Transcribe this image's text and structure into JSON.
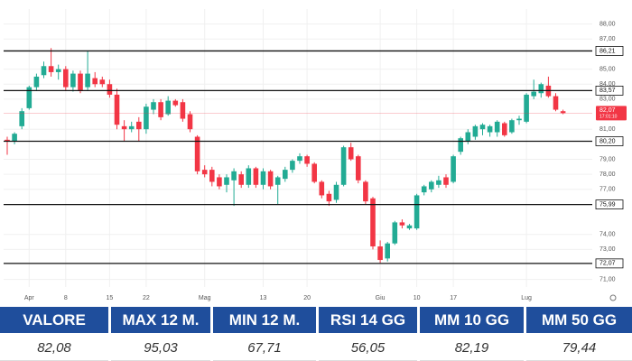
{
  "chart_data": {
    "type": "candlestick",
    "categories": [
      null,
      null,
      null,
      "Apr",
      null,
      null,
      null,
      null,
      "8",
      null,
      null,
      null,
      null,
      null,
      "15",
      null,
      null,
      null,
      null,
      "22",
      null,
      null,
      null,
      null,
      null,
      null,
      null,
      "Mag",
      null,
      null,
      null,
      null,
      null,
      null,
      null,
      "13",
      null,
      null,
      null,
      null,
      null,
      "20",
      null,
      null,
      null,
      null,
      null,
      null,
      null,
      null,
      null,
      "Giu",
      null,
      null,
      null,
      null,
      "10",
      null,
      null,
      null,
      null,
      "17",
      null,
      null,
      null,
      null,
      null,
      null,
      null,
      null,
      null,
      "Lug",
      null,
      null,
      null,
      null,
      null
    ],
    "open": [
      80.3,
      80.2,
      81.2,
      82.4,
      83.8,
      84.6,
      85.2,
      84.8,
      85.0,
      83.8,
      84.7,
      83.8,
      84.4,
      84.3,
      84.0,
      83.3,
      81.2,
      81.0,
      81.5,
      81.0,
      82.3,
      82.8,
      82.0,
      82.9,
      82.8,
      82.0,
      80.5,
      78.3,
      78.3,
      77.8,
      77.3,
      77.6,
      78.0,
      77.3,
      78.4,
      77.3,
      78.2,
      77.3,
      77.7,
      78.3,
      78.9,
      79.2,
      78.7,
      77.5,
      76.7,
      76.3,
      77.3,
      79.8,
      79.2,
      77.5,
      76.4,
      73.2,
      72.4,
      73.4,
      74.8,
      74.4,
      74.4,
      76.8,
      77.0,
      77.3,
      77.8,
      77.5,
      79.5,
      80.2,
      80.5,
      81.0,
      80.8,
      80.8,
      81.4,
      80.8,
      81.6,
      81.5,
      83.2,
      83.4,
      83.9,
      83.2,
      82.2
    ],
    "high": [
      80.5,
      80.8,
      82.4,
      83.9,
      84.7,
      85.5,
      86.4,
      85.3,
      85.2,
      84.9,
      84.9,
      86.2,
      84.8,
      84.5,
      84.3,
      83.7,
      81.6,
      81.5,
      81.8,
      82.7,
      83.0,
      83.0,
      83.2,
      83.0,
      83.0,
      82.2,
      80.6,
      78.6,
      78.5,
      78.0,
      78.0,
      78.4,
      78.2,
      78.6,
      78.5,
      78.4,
      78.3,
      77.9,
      78.5,
      79.0,
      79.4,
      79.3,
      78.8,
      77.6,
      76.9,
      77.5,
      79.9,
      80.1,
      79.3,
      77.6,
      76.5,
      73.6,
      73.5,
      74.9,
      75.0,
      74.7,
      76.7,
      77.3,
      77.6,
      77.9,
      78.0,
      79.3,
      80.5,
      81.0,
      81.3,
      81.4,
      81.3,
      81.6,
      81.5,
      81.7,
      81.9,
      83.4,
      84.3,
      84.1,
      84.5,
      83.4,
      82.3
    ],
    "low": [
      79.3,
      80.0,
      81.0,
      82.3,
      83.6,
      84.4,
      84.5,
      84.3,
      83.6,
      83.5,
      83.4,
      83.6,
      83.8,
      83.8,
      83.1,
      81.0,
      80.2,
      80.8,
      80.2,
      80.7,
      82.0,
      81.6,
      81.9,
      82.5,
      81.5,
      80.8,
      78.0,
      77.8,
      77.2,
      77.0,
      76.8,
      75.9,
      77.1,
      77.1,
      77.1,
      77.0,
      77.0,
      76.0,
      77.5,
      78.1,
      78.7,
      78.5,
      77.4,
      76.4,
      75.9,
      76.1,
      77.2,
      78.9,
      77.4,
      76.0,
      73.0,
      72.1,
      72.2,
      73.3,
      74.4,
      74.3,
      74.3,
      76.6,
      76.8,
      77.1,
      77.1,
      77.4,
      79.3,
      80.0,
      80.3,
      80.6,
      80.5,
      80.5,
      80.5,
      80.7,
      81.3,
      81.4,
      83.0,
      83.1,
      83.1,
      82.2,
      82.0
    ],
    "close": [
      80.2,
      80.7,
      82.2,
      83.8,
      84.5,
      85.2,
      84.8,
      85.0,
      83.8,
      84.7,
      83.6,
      84.7,
      84.0,
      84.0,
      83.3,
      81.3,
      81.0,
      81.2,
      81.0,
      82.5,
      82.8,
      81.8,
      82.9,
      82.6,
      81.7,
      81.0,
      78.2,
      78.0,
      77.5,
      77.2,
      77.8,
      78.2,
      77.3,
      78.4,
      77.3,
      78.2,
      77.2,
      77.8,
      78.3,
      78.9,
      79.2,
      78.7,
      77.5,
      76.6,
      76.2,
      77.3,
      79.8,
      79.0,
      77.6,
      76.2,
      73.2,
      72.3,
      73.4,
      74.8,
      74.6,
      74.6,
      76.6,
      77.2,
      77.5,
      77.6,
      77.3,
      79.2,
      80.4,
      80.8,
      81.2,
      81.3,
      81.2,
      81.5,
      80.6,
      81.6,
      81.7,
      83.3,
      83.5,
      84.0,
      83.2,
      82.3,
      82.07
    ],
    "up_color": "#22ab94",
    "down_color": "#f23645",
    "ylim": [
      70.5,
      89
    ],
    "yticks": [
      {
        "value": 71,
        "label": "71,00"
      },
      {
        "value": 73,
        "label": "73,00"
      },
      {
        "value": 74,
        "label": "74,00"
      },
      {
        "value": 77,
        "label": "77,00"
      },
      {
        "value": 78,
        "label": "78,00"
      },
      {
        "value": 79,
        "label": "79,00"
      },
      {
        "value": 81,
        "label": "81,00"
      },
      {
        "value": 83,
        "label": "83,00"
      },
      {
        "value": 84,
        "label": "84,00"
      },
      {
        "value": 85,
        "label": "85,00"
      },
      {
        "value": 87,
        "label": "87,00"
      },
      {
        "value": 88,
        "label": "88,00"
      }
    ],
    "grid": true,
    "levels": [
      {
        "value": 86.21,
        "label": "86,21"
      },
      {
        "value": 83.57,
        "label": "83,57"
      },
      {
        "value": 80.2,
        "label": "80,20"
      },
      {
        "value": 75.99,
        "label": "75,99"
      },
      {
        "value": 72.07,
        "label": "72,07"
      }
    ],
    "last_price": {
      "value": 82.07,
      "label": "82,07",
      "countdown": "17:01:10"
    }
  },
  "table": {
    "header": [
      "VALORE",
      "MAX 12 M.",
      "MIN 12 M.",
      "RSI 14 GG",
      "MM 10 GG",
      "MM 50 GG"
    ],
    "rows": [
      [
        "82,08",
        "95,03",
        "67,71",
        "56,05",
        "82,19",
        "79,44"
      ]
    ]
  }
}
